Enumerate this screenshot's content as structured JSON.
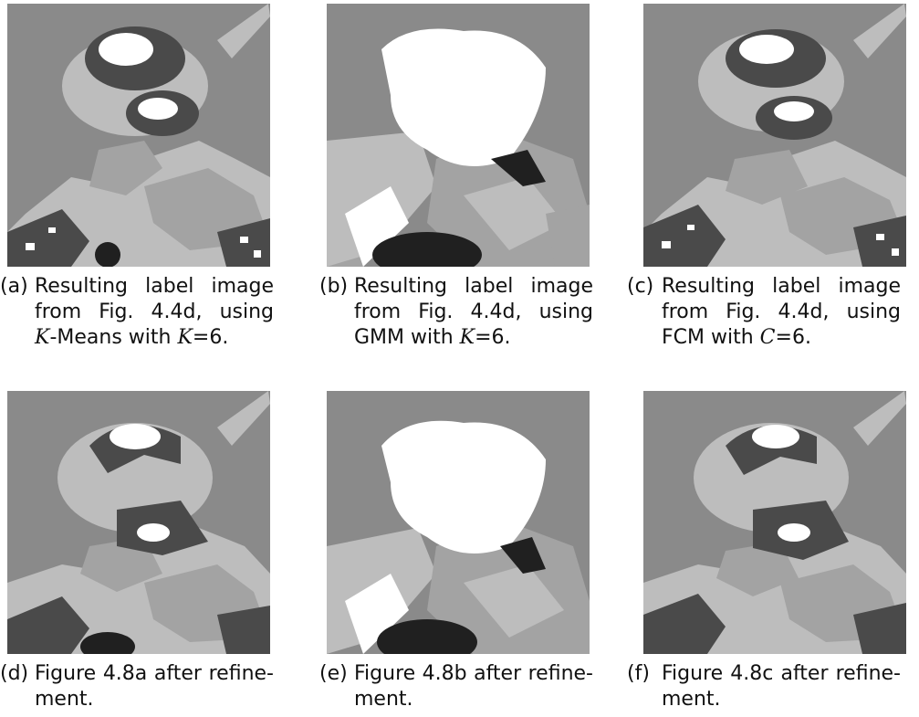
{
  "panels": [
    {
      "tag": "(a)",
      "caption_lines": [
        "Resulting label image",
        "from Fig. 4.4d, using"
      ],
      "caption_last_pre": "",
      "caption_var1": "K",
      "caption_last_mid": "-Means with ",
      "caption_var2": "K",
      "caption_last_post": "=6."
    },
    {
      "tag": "(b)",
      "caption_lines": [
        "Resulting label image",
        "from Fig. 4.4d, using"
      ],
      "caption_last_pre": "GMM with ",
      "caption_var1": "K",
      "caption_last_mid": "=6.",
      "caption_var2": "",
      "caption_last_post": ""
    },
    {
      "tag": "(c)",
      "caption_lines": [
        "Resulting label image",
        "from Fig. 4.4d, using"
      ],
      "caption_last_pre": "FCM with ",
      "caption_var1": "C",
      "caption_last_mid": "=6.",
      "caption_var2": "",
      "caption_last_post": ""
    },
    {
      "tag": "(d)",
      "caption_lines": [
        "Figure 4.8a after refine-"
      ],
      "caption_last_pre": "ment.",
      "caption_var1": "",
      "caption_last_mid": "",
      "caption_var2": "",
      "caption_last_post": ""
    },
    {
      "tag": "(e)",
      "caption_lines": [
        "Figure 4.8b after refine-"
      ],
      "caption_last_pre": "ment.",
      "caption_var1": "",
      "caption_last_mid": "",
      "caption_var2": "",
      "caption_last_post": ""
    },
    {
      "tag": "(f)",
      "caption_lines": [
        "Figure 4.8c after refine-"
      ],
      "caption_last_pre": "ment.",
      "caption_var1": "",
      "caption_last_mid": "",
      "caption_var2": "",
      "caption_last_post": ""
    }
  ],
  "colors": {
    "background_gray": "#8a8a8a",
    "light_gray": "#bdbdbd",
    "mid_gray": "#a3a3a3",
    "dark_gray": "#4a4a4a",
    "near_black": "#202020",
    "white": "#ffffff"
  }
}
